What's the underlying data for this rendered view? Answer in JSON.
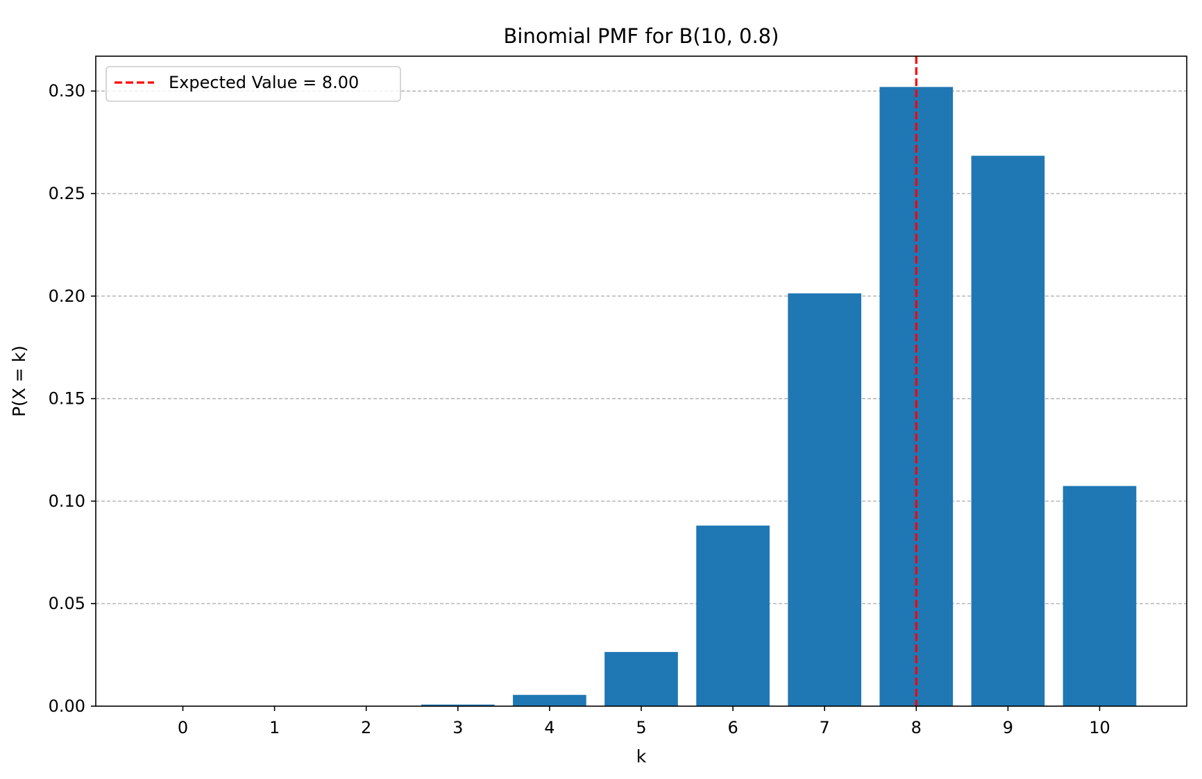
{
  "chart_data": {
    "type": "bar",
    "title": "Binomial PMF for B(10, 0.8)",
    "xlabel": "k",
    "ylabel": "P(X = k)",
    "categories": [
      "0",
      "1",
      "2",
      "3",
      "4",
      "5",
      "6",
      "7",
      "8",
      "9",
      "10"
    ],
    "x": [
      0,
      1,
      2,
      3,
      4,
      5,
      6,
      7,
      8,
      9,
      10
    ],
    "values": [
      1e-07,
      4.1e-06,
      7.37e-05,
      0.000786,
      0.005505,
      0.026424,
      0.08808,
      0.201327,
      0.30199,
      0.268435,
      0.107374
    ],
    "xlim": [
      -0.95,
      10.95
    ],
    "ylim": [
      0,
      0.317
    ],
    "yticks": [
      0.0,
      0.05,
      0.1,
      0.15,
      0.2,
      0.25,
      0.3
    ],
    "ytick_labels": [
      "0.00",
      "0.05",
      "0.10",
      "0.15",
      "0.20",
      "0.25",
      "0.30"
    ],
    "grid": "y-axis dashed",
    "bar_color": "#1f77b4",
    "expected_value": {
      "x": 8.0,
      "label": "Expected Value = 8.00",
      "color": "#ff0000",
      "style": "dashed"
    },
    "legend": {
      "position": "top-left"
    }
  }
}
